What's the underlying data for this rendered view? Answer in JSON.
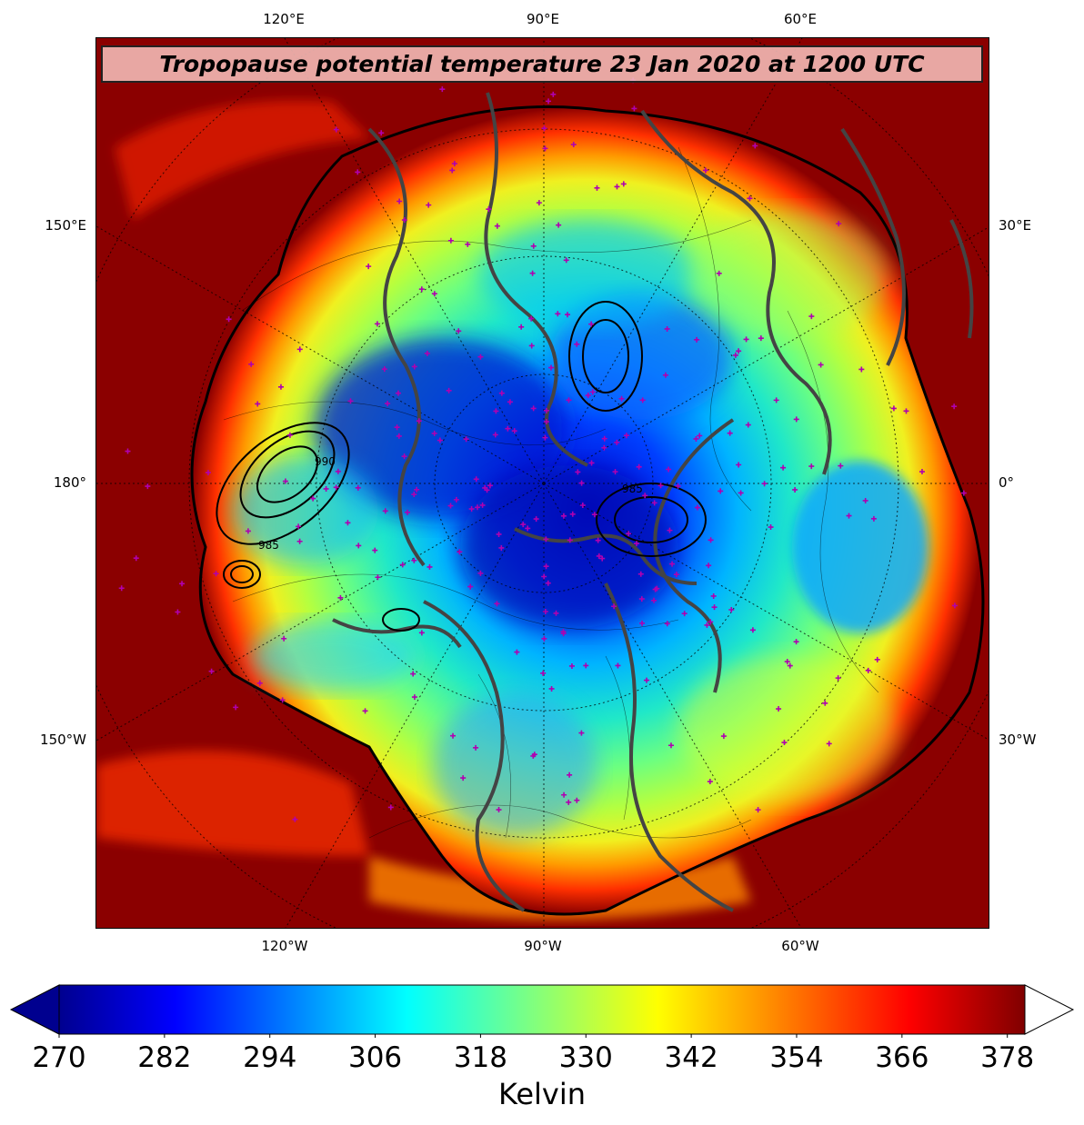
{
  "title": "Tropopause potential temperature 23 Jan 2020 at 1200 UTC",
  "colors": {
    "outer_band": "#8b0000",
    "coastline": "#444444",
    "station_marker": "#b000b0",
    "title_box": "#f5beb9"
  },
  "graticule": {
    "top": [
      "120°E",
      "90°E",
      "60°E"
    ],
    "bottom": [
      "120°W",
      "90°W",
      "60°W"
    ],
    "left": [
      "150°E",
      "180°",
      "150°W"
    ],
    "right": [
      "30°E",
      "0°",
      "30°W"
    ]
  },
  "colorbar": {
    "label": "Kelvin",
    "min": 270,
    "max": 380,
    "ticks": [
      "270",
      "282",
      "294",
      "306",
      "318",
      "330",
      "342",
      "354",
      "366",
      "378"
    ],
    "colormap": "jet",
    "extend": "both"
  },
  "contour_labels": [
    "985",
    "985",
    "990"
  ]
}
